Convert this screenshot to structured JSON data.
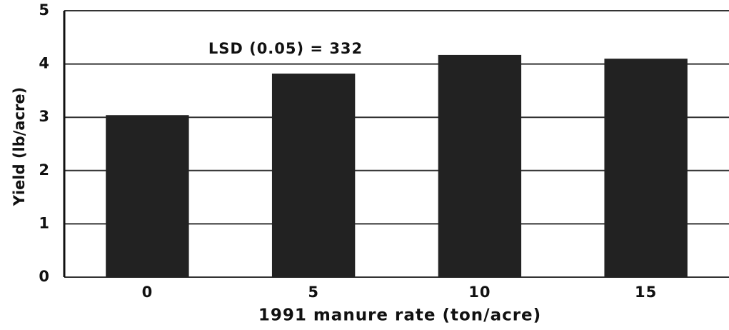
{
  "chart_data": {
    "type": "bar",
    "annotation": "LSD (0.05) = 332",
    "x_label": "1991 manure rate (ton/acre)",
    "y_label": "Yield (lb/acre)",
    "categories": [
      "0",
      "5",
      "10",
      "15"
    ],
    "values": [
      3.04,
      3.82,
      4.17,
      4.1
    ],
    "color": "#222222",
    "ylim": [
      0,
      5
    ],
    "yticks": [
      0,
      1,
      2,
      3,
      4,
      5
    ],
    "grid": true
  }
}
